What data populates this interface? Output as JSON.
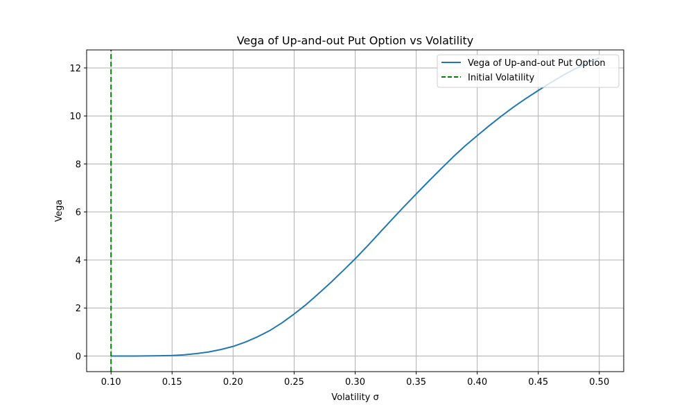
{
  "chart_data": {
    "type": "line",
    "title": "Vega of Up-and-out Put Option vs Volatility",
    "xlabel": "Volatility σ",
    "ylabel": "Vega",
    "xlim": [
      0.08,
      0.52
    ],
    "ylim": [
      -0.65,
      12.75
    ],
    "x_ticks": [
      0.1,
      0.15,
      0.2,
      0.25,
      0.3,
      0.35,
      0.4,
      0.45,
      0.5
    ],
    "x_tick_labels": [
      "0.10",
      "0.15",
      "0.20",
      "0.25",
      "0.30",
      "0.35",
      "0.40",
      "0.45",
      "0.50"
    ],
    "y_ticks": [
      0,
      2,
      4,
      6,
      8,
      10,
      12
    ],
    "y_tick_labels": [
      "0",
      "2",
      "4",
      "6",
      "8",
      "10",
      "12"
    ],
    "grid": true,
    "legend_position": "upper right",
    "series": [
      {
        "name": "Vega of Up-and-out Put Option",
        "color": "#1f77b4",
        "style": "solid",
        "x": [
          0.1,
          0.12,
          0.14,
          0.15,
          0.16,
          0.17,
          0.18,
          0.19,
          0.2,
          0.21,
          0.22,
          0.23,
          0.24,
          0.25,
          0.26,
          0.27,
          0.28,
          0.29,
          0.3,
          0.31,
          0.32,
          0.33,
          0.34,
          0.35,
          0.36,
          0.37,
          0.38,
          0.39,
          0.4,
          0.41,
          0.42,
          0.43,
          0.44,
          0.45,
          0.46,
          0.47,
          0.48,
          0.49,
          0.5
        ],
        "y": [
          0.0,
          0.0,
          0.01,
          0.02,
          0.05,
          0.1,
          0.17,
          0.27,
          0.4,
          0.58,
          0.8,
          1.06,
          1.38,
          1.75,
          2.15,
          2.6,
          3.06,
          3.55,
          4.05,
          4.58,
          5.13,
          5.68,
          6.22,
          6.75,
          7.27,
          7.78,
          8.28,
          8.75,
          9.18,
          9.6,
          10.0,
          10.38,
          10.73,
          11.06,
          11.38,
          11.68,
          11.96,
          12.2,
          12.42
        ]
      },
      {
        "name": "Initial Volatility",
        "color": "#008000",
        "style": "dashed",
        "x": [
          0.1,
          0.1
        ],
        "y": [
          -0.65,
          12.75
        ]
      }
    ]
  }
}
